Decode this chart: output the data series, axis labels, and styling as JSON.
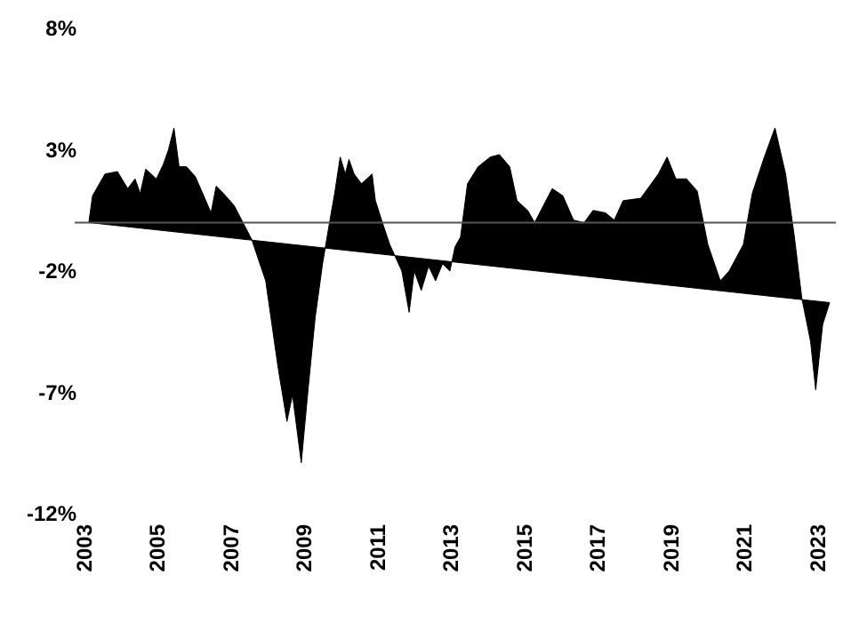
{
  "chart_data": {
    "type": "area",
    "x": [
      2003.14,
      2003.24,
      2003.58,
      2003.92,
      2004.2,
      2004.4,
      2004.54,
      2004.69,
      2004.98,
      2005.17,
      2005.31,
      2005.46,
      2005.6,
      2005.8,
      2006.04,
      2006.33,
      2006.47,
      2006.61,
      2006.81,
      2007.1,
      2007.34,
      2007.58,
      2007.96,
      2008.3,
      2008.54,
      2008.69,
      2008.93,
      2009.12,
      2009.31,
      2009.51,
      2009.7,
      2009.84,
      2009.99,
      2010.13,
      2010.23,
      2010.37,
      2010.57,
      2010.86,
      2010.95,
      2011.14,
      2011.34,
      2011.67,
      2011.87,
      2012.01,
      2012.2,
      2012.4,
      2012.59,
      2012.78,
      2012.98,
      2013.12,
      2013.27,
      2013.46,
      2013.75,
      2014.08,
      2014.33,
      2014.61,
      2014.81,
      2015.1,
      2015.29,
      2015.53,
      2015.77,
      2016.06,
      2016.35,
      2016.64,
      2016.88,
      2017.22,
      2017.46,
      2017.7,
      2018.18,
      2018.66,
      2018.9,
      2019.14,
      2019.43,
      2019.72,
      2020.01,
      2020.35,
      2020.59,
      2020.98,
      2021.22,
      2021.55,
      2021.84,
      2022.13,
      2022.37,
      2022.57,
      2022.81,
      2022.95,
      2023.14,
      2023.33
    ],
    "series": [
      {
        "color": "#000000",
        "values": [
          0,
          1.1,
          2.0,
          2.1,
          1.4,
          1.8,
          1.2,
          2.2,
          1.8,
          2.4,
          3.0,
          3.9,
          2.3,
          2.3,
          1.9,
          0.9,
          0.4,
          1.5,
          1.2,
          0.7,
          0,
          -0.7,
          -2.4,
          -6.0,
          -8.2,
          -7.1,
          -9.9,
          -6.8,
          -3.9,
          -1.7,
          0,
          1.2,
          2.7,
          2.0,
          2.6,
          2.0,
          1.6,
          2.0,
          0.9,
          0,
          -0.9,
          -2.0,
          -3.7,
          -2.0,
          -2.8,
          -1.8,
          -2.4,
          -1.7,
          -2.0,
          -1.0,
          -0.6,
          1.6,
          2.3,
          2.7,
          2.8,
          2.3,
          0.9,
          0.5,
          0,
          0.7,
          1.4,
          1.1,
          0.1,
          0,
          0.5,
          0.4,
          0.1,
          0.9,
          1.0,
          2.0,
          2.7,
          1.8,
          1.8,
          1.3,
          -0.9,
          -2.4,
          -2.0,
          -0.9,
          1.2,
          2.7,
          3.9,
          2.0,
          -0.6,
          -3.1,
          -4.9,
          -6.9,
          -4.2,
          -3.3
        ]
      }
    ],
    "xlim": [
      2002.9,
      2023.5
    ],
    "xticks": [
      2003,
      2005,
      2007,
      2009,
      2011,
      2013,
      2015,
      2017,
      2019,
      2021,
      2023
    ],
    "ylim": [
      -12,
      8
    ],
    "yticks": [
      {
        "value": 8,
        "label": "8%"
      },
      {
        "value": 3,
        "label": "3%"
      },
      {
        "value": -2,
        "label": "-2%"
      },
      {
        "value": -7,
        "label": "-7%"
      },
      {
        "value": -12,
        "label": "-12%"
      }
    ],
    "ref_lines": [
      {
        "axis": "y",
        "value": 0,
        "color": "#555555"
      }
    ]
  }
}
